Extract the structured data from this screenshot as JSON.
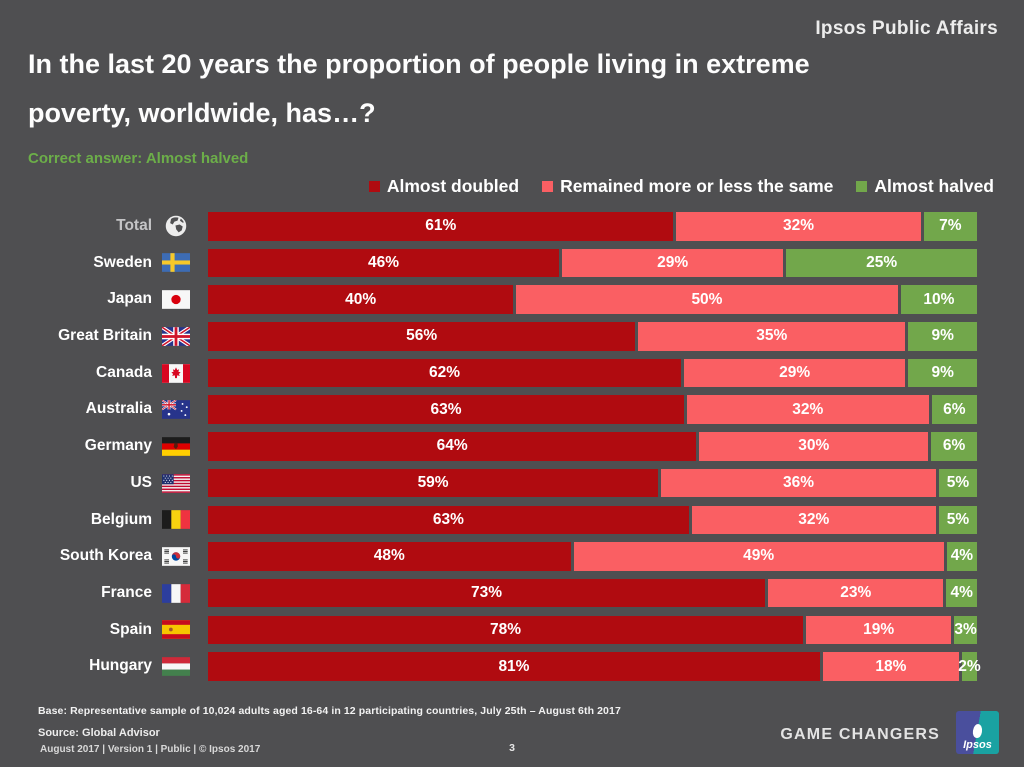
{
  "header": {
    "brand": "Ipsos Public Affairs"
  },
  "title": {
    "line1": "In the last 20 years the proportion of people living in extreme",
    "line2": "poverty, worldwide, has…?"
  },
  "correct_answer": {
    "label": "Correct answer: Almost halved",
    "color": "#6cae49"
  },
  "colors": {
    "background": "#4f4f51",
    "almost_doubled": "#b00b10",
    "remained_same": "#fa5f63",
    "almost_halved": "#72a74b"
  },
  "legend": [
    {
      "icon": "legend-swatch-dark-red",
      "label": "Almost doubled",
      "color": "#b00b10"
    },
    {
      "icon": "legend-swatch-pink",
      "label": "Remained more or less the same",
      "color": "#fa5f63"
    },
    {
      "icon": "legend-swatch-green",
      "label": "Almost halved",
      "color": "#72a74b"
    }
  ],
  "chart_data": {
    "type": "bar",
    "orientation": "horizontal",
    "stacked": true,
    "value_suffix": "%",
    "axis_range": [
      0,
      100
    ],
    "grid": false,
    "legend_position": "top",
    "categories": [
      "Total",
      "Sweden",
      "Japan",
      "Great Britain",
      "Canada",
      "Australia",
      "Germany",
      "US",
      "Belgium",
      "South Korea",
      "France",
      "Spain",
      "Hungary"
    ],
    "flags": [
      "globe-icon",
      "sweden-flag-icon",
      "japan-flag-icon",
      "great-britain-flag-icon",
      "canada-flag-icon",
      "australia-flag-icon",
      "germany-flag-icon",
      "us-flag-icon",
      "belgium-flag-icon",
      "south-korea-flag-icon",
      "france-flag-icon",
      "spain-flag-icon",
      "hungary-flag-icon"
    ],
    "series": [
      {
        "name": "Almost doubled",
        "color": "#b00b10",
        "values": [
          61,
          46,
          40,
          56,
          62,
          63,
          64,
          59,
          63,
          48,
          73,
          78,
          81
        ]
      },
      {
        "name": "Remained more or less the same",
        "color": "#fa5f63",
        "values": [
          32,
          29,
          50,
          35,
          29,
          32,
          30,
          36,
          32,
          49,
          23,
          19,
          18
        ]
      },
      {
        "name": "Almost halved",
        "color": "#72a74b",
        "values": [
          7,
          25,
          10,
          9,
          9,
          6,
          6,
          5,
          5,
          4,
          4,
          3,
          2
        ]
      }
    ]
  },
  "footer": {
    "base": "Base: Representative sample of 10,024 adults aged 16-64 in 12 participating countries, July 25th – August 6th 2017",
    "source": "Source: Global Advisor",
    "meta": "August 2017 |  Version 1  |  Public | © Ipsos 2017",
    "page_number": "3",
    "tagline": "GAME CHANGERS",
    "logo_text": "Ipsos"
  }
}
